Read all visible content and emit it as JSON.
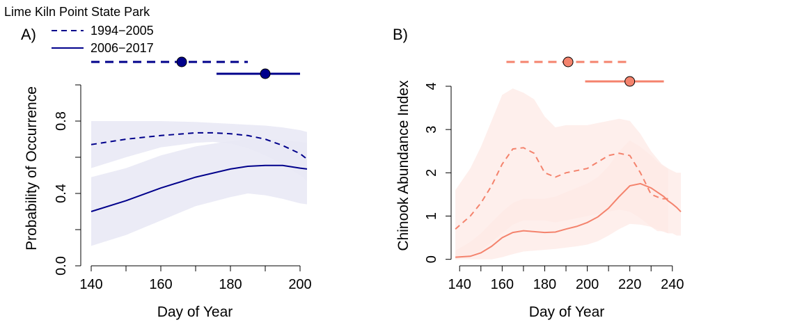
{
  "figure": {
    "site_title": "Lime Kiln Point State Park"
  },
  "legend": {
    "entries": [
      "1994−2005",
      "2006−2017"
    ]
  },
  "colors": {
    "panelA_line": "#00008b",
    "panelA_ribbon": "#e9e9f5",
    "panelB_line": "#f4836d",
    "panelB_ribbon": "#fdeae5",
    "panelB_marker": "#f4836d"
  },
  "chart_data": [
    {
      "panel_label": "A)",
      "type": "line",
      "xlabel": "Day of Year",
      "ylabel": "Probability of Occurrence",
      "xlim": [
        137,
        203
      ],
      "ylim": [
        0,
        1.1
      ],
      "x_ticks": [
        140,
        160,
        180,
        200
      ],
      "x_minor_ticks": [
        150,
        170,
        190
      ],
      "y_ticks": [
        "0.0",
        "0.4",
        "0.8"
      ],
      "y_tick_values": [
        0.0,
        0.4,
        0.8
      ],
      "y_minor_ticks": [
        0.2,
        0.6,
        1.0
      ],
      "series": [
        {
          "name": "1994−2005",
          "style": "dashed",
          "x": [
            140,
            150,
            160,
            170,
            175,
            180,
            185,
            190,
            195,
            200,
            202
          ],
          "y": [
            0.67,
            0.7,
            0.72,
            0.735,
            0.735,
            0.73,
            0.72,
            0.7,
            0.665,
            0.62,
            0.59
          ],
          "lower": [
            0.54,
            0.6,
            0.655,
            0.68,
            0.685,
            0.675,
            0.65,
            0.61,
            0.56,
            0.5,
            0.47
          ],
          "upper": [
            0.8,
            0.8,
            0.8,
            0.795,
            0.79,
            0.785,
            0.78,
            0.775,
            0.765,
            0.75,
            0.74
          ],
          "interval": {
            "start": 140,
            "end": 185,
            "point": 166
          }
        },
        {
          "name": "2006−2017",
          "style": "solid",
          "x": [
            140,
            150,
            160,
            170,
            180,
            185,
            190,
            195,
            200,
            202
          ],
          "y": [
            0.3,
            0.36,
            0.43,
            0.49,
            0.535,
            0.55,
            0.555,
            0.555,
            0.54,
            0.535
          ],
          "lower": [
            0.11,
            0.17,
            0.25,
            0.33,
            0.38,
            0.4,
            0.39,
            0.37,
            0.345,
            0.34
          ],
          "upper": [
            0.49,
            0.54,
            0.61,
            0.66,
            0.69,
            0.7,
            0.7,
            0.695,
            0.685,
            0.68
          ],
          "interval": {
            "start": 176,
            "end": 200,
            "point": 190
          }
        }
      ]
    },
    {
      "panel_label": "B)",
      "type": "line",
      "xlabel": "Day of Year",
      "ylabel": "Chinook Abundance Index",
      "xlim": [
        136,
        244
      ],
      "ylim": [
        -0.15,
        4.45
      ],
      "x_ticks": [
        140,
        160,
        180,
        200,
        220,
        240
      ],
      "x_minor_ticks": [
        150,
        170,
        190,
        210,
        230
      ],
      "y_ticks": [
        "0",
        "1",
        "2",
        "3",
        "4"
      ],
      "y_tick_values": [
        0,
        1,
        2,
        3,
        4
      ],
      "series": [
        {
          "name": "1994−2005",
          "style": "dashed",
          "x": [
            138,
            145,
            150,
            155,
            160,
            165,
            170,
            175,
            180,
            185,
            190,
            195,
            200,
            205,
            210,
            215,
            220,
            225,
            230,
            235,
            238
          ],
          "y": [
            0.7,
            1.0,
            1.3,
            1.7,
            2.2,
            2.55,
            2.58,
            2.45,
            2.0,
            1.9,
            2.0,
            2.05,
            2.1,
            2.25,
            2.4,
            2.45,
            2.4,
            2.0,
            1.5,
            1.4,
            1.4
          ],
          "lower": [
            0.0,
            0.1,
            0.2,
            0.4,
            0.6,
            0.8,
            0.9,
            0.9,
            0.9,
            0.85,
            0.9,
            0.95,
            1.0,
            1.05,
            1.1,
            1.15,
            1.1,
            0.95,
            0.75,
            0.65,
            0.6
          ],
          "upper": [
            1.6,
            2.1,
            2.6,
            3.2,
            3.8,
            3.95,
            3.85,
            3.7,
            3.3,
            3.05,
            3.1,
            3.1,
            3.1,
            3.15,
            3.2,
            3.25,
            3.2,
            2.9,
            2.5,
            2.2,
            2.1
          ],
          "interval": {
            "start": 162,
            "end": 220,
            "point": 191
          }
        },
        {
          "name": "2006−2017",
          "style": "solid",
          "x": [
            138,
            145,
            150,
            155,
            160,
            165,
            170,
            175,
            180,
            185,
            190,
            195,
            200,
            205,
            210,
            215,
            220,
            225,
            230,
            233,
            236,
            238,
            240,
            242,
            244
          ],
          "y": [
            0.05,
            0.07,
            0.15,
            0.3,
            0.5,
            0.62,
            0.66,
            0.64,
            0.62,
            0.63,
            0.7,
            0.76,
            0.85,
            0.98,
            1.18,
            1.45,
            1.7,
            1.75,
            1.65,
            1.55,
            1.45,
            1.35,
            1.28,
            1.2,
            1.1
          ],
          "lower": [
            0.0,
            0.0,
            0.0,
            0.0,
            0.05,
            0.12,
            0.18,
            0.2,
            0.22,
            0.24,
            0.27,
            0.3,
            0.34,
            0.42,
            0.55,
            0.7,
            0.82,
            0.8,
            0.75,
            0.65,
            0.65,
            0.6,
            0.6,
            0.55,
            0.55
          ],
          "upper": [
            0.2,
            0.4,
            0.6,
            0.85,
            1.1,
            1.3,
            1.4,
            1.4,
            1.4,
            1.45,
            1.55,
            1.65,
            1.75,
            1.9,
            2.15,
            2.5,
            2.75,
            2.6,
            2.4,
            2.25,
            2.15,
            2.1,
            2.05,
            2.0,
            2.0
          ],
          "interval": {
            "start": 199,
            "end": 236,
            "point": 220
          }
        }
      ]
    }
  ]
}
